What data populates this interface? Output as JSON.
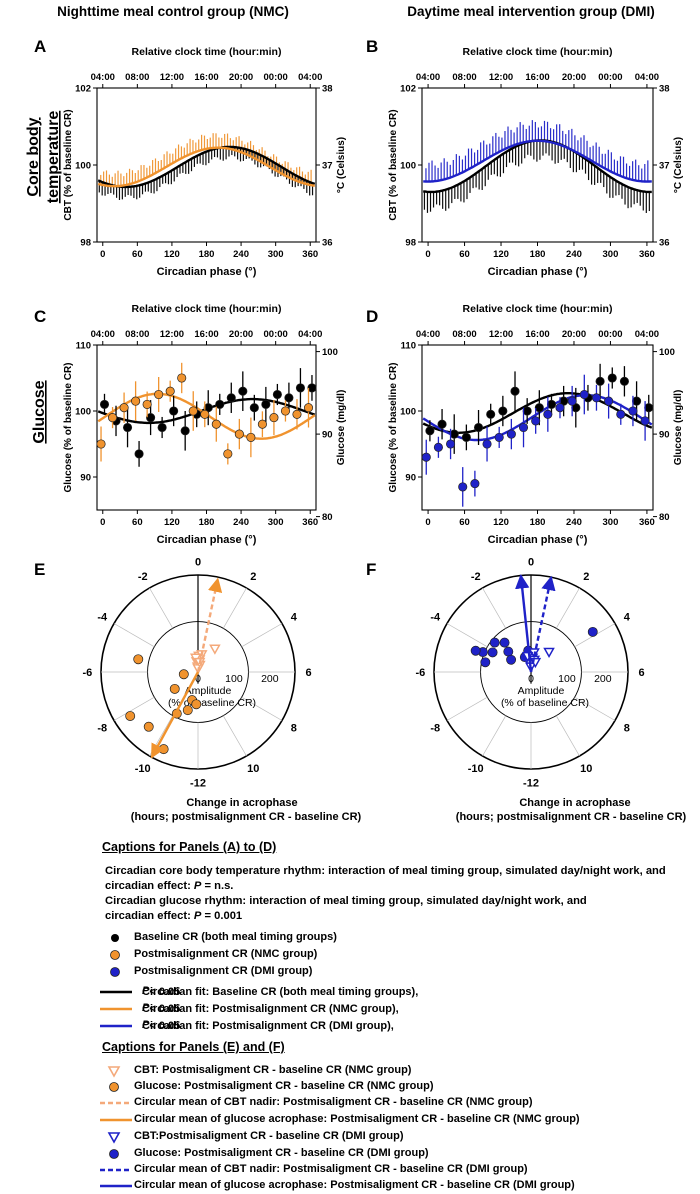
{
  "headers": {
    "left": "Nighttime meal control group (NMC)",
    "right": "Daytime meal intervention group (DMI)"
  },
  "row_labels": {
    "cbt_line1": "Core body",
    "cbt_line2": "temperature",
    "glucose": "Glucose"
  },
  "colors": {
    "baseline": "#000000",
    "nmc": "#f0932e",
    "nmc_light": "#f4a97a",
    "dmi": "#1f22c8",
    "marker_outline": "#222222"
  },
  "chart_data": [
    {
      "id": "A",
      "type": "line",
      "panel_label": "A",
      "top_axis_label": "Relative clock time (hour:min)",
      "top_ticks": [
        "04:00",
        "08:00",
        "12:00",
        "16:00",
        "20:00",
        "00:00",
        "04:00"
      ],
      "xlabel": "Circadian phase (°)",
      "x_ticks": [
        0,
        60,
        120,
        180,
        240,
        300,
        360
      ],
      "xlim": [
        -10,
        370
      ],
      "ylabel": "CBT (% of baseline CR)",
      "y_ticks": [
        98,
        100,
        102
      ],
      "ylim": [
        98,
        102
      ],
      "ylabel_right": "°C (Celsius)",
      "y_ticks_right": [
        "36",
        "37",
        "38"
      ],
      "series": [
        {
          "key": "baseline",
          "mean": 99.95,
          "amp": 0.52,
          "peak": 220,
          "err_lo": 0.35,
          "err_hi": 0.3
        },
        {
          "key": "nmc",
          "mean": 99.95,
          "amp": 0.5,
          "peak": 200,
          "err_lo": 0.3,
          "err_hi": 0.4
        }
      ]
    },
    {
      "id": "B",
      "type": "line",
      "panel_label": "B",
      "top_axis_label": "Relative clock time (hour:min)",
      "top_ticks": [
        "04:00",
        "08:00",
        "12:00",
        "16:00",
        "20:00",
        "00:00",
        "04:00"
      ],
      "xlabel": "Circadian phase (°)",
      "x_ticks": [
        0,
        60,
        120,
        180,
        240,
        300,
        360
      ],
      "xlim": [
        -10,
        370
      ],
      "ylabel": "CBT (% of baseline CR)",
      "y_ticks": [
        98,
        100,
        102
      ],
      "ylim": [
        98,
        102
      ],
      "ylabel_right": "°C (Celsius)",
      "y_ticks_right": [
        "36",
        "37",
        "38"
      ],
      "series": [
        {
          "key": "baseline",
          "mean": 99.97,
          "amp": 0.67,
          "peak": 185,
          "err_lo": 0.55,
          "err_hi": 0.35
        },
        {
          "key": "dmi",
          "mean": 100.1,
          "amp": 0.53,
          "peak": 180,
          "err_lo": 0.35,
          "err_hi": 0.55
        }
      ]
    },
    {
      "id": "C",
      "type": "scatter",
      "panel_label": "C",
      "top_axis_label": "Relative clock time (hour:min)",
      "top_ticks": [
        "04:00",
        "08:00",
        "12:00",
        "16:00",
        "20:00",
        "00:00",
        "04:00"
      ],
      "xlabel": "Circadian phase (°)",
      "x_ticks": [
        0,
        60,
        120,
        180,
        240,
        300,
        360
      ],
      "xlim": [
        -10,
        370
      ],
      "ylabel": "Glucose (% of baseline CR)",
      "y_ticks": [
        90,
        100,
        110
      ],
      "ylim": [
        85,
        110
      ],
      "ylabel_right": "Glucose (mg/dl)",
      "y_ticks_right": [
        "80",
        "90",
        "100"
      ],
      "fits": [
        {
          "key": "baseline",
          "mean": 100.0,
          "amp": 1.8,
          "peak": 260
        },
        {
          "key": "nmc",
          "mean": 99.2,
          "amp": 3.4,
          "peak": 95
        }
      ],
      "points": {
        "x": [
          0,
          20,
          40,
          60,
          80,
          100,
          120,
          140,
          160,
          180,
          200,
          220,
          240,
          260,
          280,
          300,
          320,
          340,
          360
        ],
        "baseline": [
          101.0,
          98.5,
          97.5,
          93.5,
          99.0,
          97.5,
          100.0,
          97.0,
          99.5,
          100.5,
          101.0,
          102.0,
          103.0,
          100.5,
          101.0,
          102.5,
          102.0,
          103.5,
          103.5
        ],
        "nmc": [
          95.0,
          99.0,
          100.5,
          101.5,
          101.0,
          102.5,
          103.0,
          105.0,
          100.0,
          99.5,
          98.0,
          93.5,
          96.5,
          96.0,
          98.0,
          99.0,
          100.0,
          99.5,
          100.5
        ]
      }
    },
    {
      "id": "D",
      "type": "scatter",
      "panel_label": "D",
      "top_axis_label": "Relative clock time (hour:min)",
      "top_ticks": [
        "04:00",
        "08:00",
        "12:00",
        "16:00",
        "20:00",
        "00:00",
        "04:00"
      ],
      "xlabel": "Circadian phase (°)",
      "x_ticks": [
        0,
        60,
        120,
        180,
        240,
        300,
        360
      ],
      "xlim": [
        -10,
        370
      ],
      "ylabel": "Glucose (% of baseline CR)",
      "y_ticks": [
        90,
        100,
        110
      ],
      "ylim": [
        85,
        110
      ],
      "ylabel_right": "Glucose (mg/dl)",
      "y_ticks_right": [
        "80",
        "90",
        "100"
      ],
      "fits": [
        {
          "key": "baseline",
          "mean": 99.7,
          "amp": 3.0,
          "peak": 230
        },
        {
          "key": "dmi",
          "mean": 99.0,
          "amp": 3.4,
          "peak": 260
        }
      ],
      "points": {
        "x": [
          0,
          20,
          40,
          60,
          80,
          100,
          120,
          140,
          160,
          180,
          200,
          220,
          240,
          260,
          280,
          300,
          320,
          340,
          360
        ],
        "baseline": [
          97.0,
          98.0,
          96.5,
          96.0,
          97.5,
          99.5,
          100.0,
          103.0,
          100.0,
          100.5,
          101.0,
          101.5,
          100.5,
          102.0,
          104.5,
          105.0,
          104.5,
          101.5,
          100.5
        ],
        "dmi": [
          93.0,
          94.5,
          95.0,
          88.5,
          89.0,
          95.0,
          96.0,
          96.5,
          97.5,
          98.5,
          99.5,
          100.5,
          101.5,
          102.5,
          102.0,
          101.5,
          99.5,
          100.0,
          98.5
        ]
      }
    },
    {
      "id": "E",
      "type": "scatter",
      "panel_label": "E",
      "polar": true,
      "hour_ticks": [
        "0",
        "2",
        "4",
        "6",
        "8",
        "10",
        "-12",
        "-10",
        "-8",
        "-6",
        "-4",
        "-2"
      ],
      "amp_ticks": [
        "0",
        "100",
        "200"
      ],
      "amp_label_1": "Amplitude",
      "amp_label_2": "(% of baseline CR)",
      "caption_1": "Change in acrophase",
      "caption_2": "(hours; postmisalignment CR - baseline CR)",
      "cbt_points": [
        [
          0.0,
          25
        ],
        [
          0.5,
          35
        ],
        [
          -0.5,
          30
        ],
        [
          0.2,
          45
        ],
        [
          -0.3,
          15
        ],
        [
          1.0,
          20
        ],
        [
          0.8,
          50
        ],
        [
          2.4,
          80
        ],
        [
          -0.6,
          40
        ],
        [
          0.1,
          10
        ],
        [
          0.6,
          28
        ]
      ],
      "glucose_points": [
        [
          -6.6,
          40
        ],
        [
          -5.2,
          170
        ],
        [
          -8.2,
          225
        ],
        [
          -9.2,
          205
        ],
        [
          -11.2,
          80
        ],
        [
          -10.2,
          130
        ],
        [
          -11.0,
          110
        ],
        [
          -10.4,
          235
        ],
        [
          -8.4,
          80
        ],
        [
          -11.8,
          90
        ]
      ],
      "cbt_mean": [
        0.8,
        265
      ],
      "glucose_mean": [
        -10.1,
        270
      ]
    },
    {
      "id": "F",
      "type": "scatter",
      "panel_label": "F",
      "polar": true,
      "hour_ticks": [
        "0",
        "2",
        "4",
        "6",
        "8",
        "10",
        "-12",
        "-10",
        "-8",
        "-6",
        "-4",
        "-2"
      ],
      "amp_ticks": [
        "0",
        "100",
        "200"
      ],
      "amp_label_1": "Amplitude",
      "amp_label_2": "(% of baseline CR)",
      "caption_1": "Change in acrophase",
      "caption_2": "(hours; postmisalignment CR - baseline CR)",
      "cbt_points": [
        [
          0.0,
          30
        ],
        [
          -0.5,
          25
        ],
        [
          0.4,
          40
        ],
        [
          1.0,
          35
        ],
        [
          -0.2,
          15
        ],
        [
          2.8,
          75
        ],
        [
          0.6,
          55
        ],
        [
          1.6,
          30
        ],
        [
          -0.8,
          45
        ]
      ],
      "glucose_points": [
        [
          -4.5,
          145
        ],
        [
          -3.4,
          130
        ],
        [
          -4.2,
          120
        ],
        [
          -2.8,
          110
        ],
        [
          -3.2,
          85
        ],
        [
          3.8,
          205
        ],
        [
          -0.5,
          60
        ],
        [
          -1.5,
          45
        ],
        [
          -4.6,
          165
        ],
        [
          -5.2,
          130
        ],
        [
          -3.9,
          65
        ]
      ],
      "cbt_mean": [
        0.8,
        270
      ],
      "glucose_mean": [
        -0.4,
        270
      ]
    }
  ],
  "captions_ad": {
    "heading": "Captions for Panels (A) to (D)",
    "line1": "Circadian core body temperature rhythm: interaction of meal timing group, simulated day/night work, and",
    "line2a": "circadian effect: ",
    "line2p": "P",
    "line2b": " = n.s.",
    "line3": "Circadian glucose rhythm: interaction of meal timing group, simulated day/night work, and",
    "line4a": "circadian effect: ",
    "line4p": "P",
    "line4b": " = 0.001",
    "legend": {
      "baseline_point": "Baseline CR (both meal timing groups)",
      "nmc_point": "Postmisalignment CR (NMC group)",
      "dmi_point": "Postmisalignment CR (DMI group)",
      "fit_baseline": "Circadian fit: Baseline CR (both meal timing groups), ",
      "fit_nmc": "Circadian fit: Postmisalignment CR (NMC group), ",
      "fit_dmi": "Circadian fit: Postmisalignment CR (DMI group), ",
      "p_symbol": "P",
      "p_value": " < 0.05"
    }
  },
  "captions_ef": {
    "heading": "Captions for Panels (E) and (F)",
    "nmc_cbt": "CBT: Postmisaligment CR - baseline CR (NMC group)",
    "nmc_glu": "Glucose: Postmisaligment CR - baseline CR  (NMC group)",
    "nmc_cbt_mean": "Circular mean of CBT nadir: Postmisaligment CR - baseline CR  (NMC group)",
    "nmc_glu_mean": "Circular mean of glucose acrophase: Postmisaligment CR - baseline CR  (NMC group)",
    "dmi_cbt": "CBT:Postmisaligment CR - baseline CR  (DMI group)",
    "dmi_glu": "Glucose: Postmisaligment CR - baseline CR  (DMI group)",
    "dmi_cbt_mean": "Circular mean of CBT nadir: Postmisaligment CR - baseline CR  (DMI group)",
    "dmi_glu_mean": "Circular mean of glucose acrophase: Postmisaligment CR - baseline CR  (DMI group)"
  }
}
